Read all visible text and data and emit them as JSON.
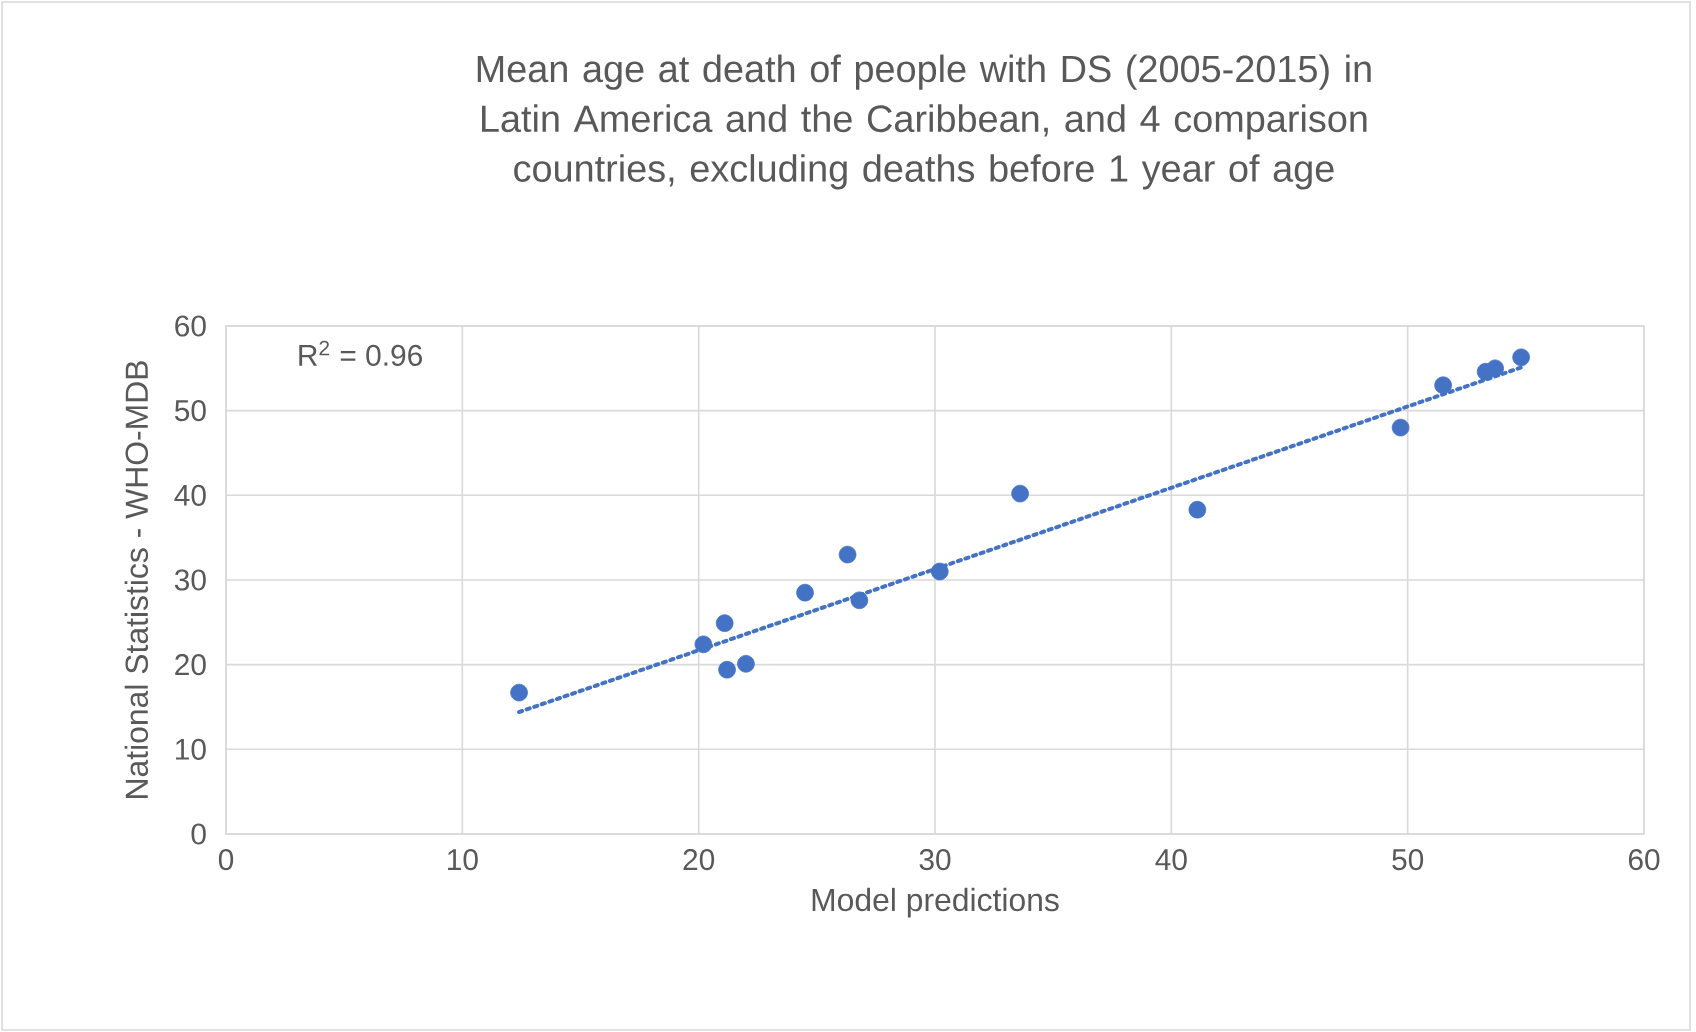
{
  "chart_data": {
    "type": "scatter",
    "title": "Mean age at death of people with DS (2005-2015) in Latin America and the Caribbean, and 4 comparison countries, excluding deaths before 1 year of age",
    "xlabel": "Model predictions",
    "ylabel": "National Statistics - WHO-MDB",
    "annotations": [
      "R$^{2}$ = 0.96"
    ],
    "series": [
      {
        "color": "#4472c4",
        "marker": "circle",
        "x": [
          12.4,
          20.2,
          21.1,
          21.2,
          22.0,
          24.5,
          26.3,
          26.8,
          30.2,
          33.6,
          41.1,
          49.7,
          51.5,
          53.3,
          53.7,
          54.8
        ],
        "values": [
          16.7,
          22.4,
          24.9,
          19.4,
          20.1,
          28.5,
          33.0,
          27.6,
          31.0,
          40.2,
          38.3,
          48.0,
          53.0,
          54.6,
          55.0,
          56.3
        ]
      },
      {
        "type": "line",
        "color": "#4472c4",
        "line_style": "dotted",
        "marker": "none",
        "x": [
          12.4,
          54.8
        ],
        "values": [
          14.4,
          55.1
        ]
      }
    ],
    "xlim": [
      0,
      60
    ],
    "ylim": [
      0,
      60
    ],
    "xticks": [
      0,
      10,
      20,
      30,
      40,
      50,
      60
    ],
    "yticks": [
      0,
      10,
      20,
      30,
      40,
      50,
      60
    ],
    "grid": true
  }
}
